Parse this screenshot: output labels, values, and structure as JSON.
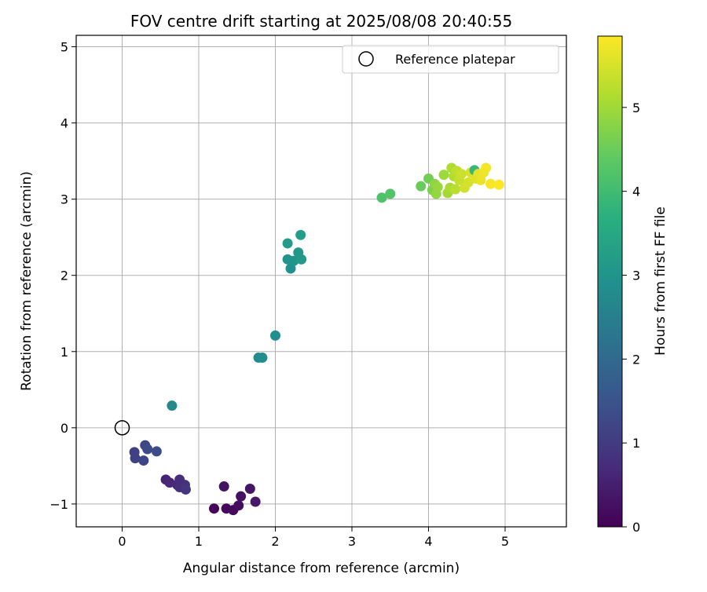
{
  "chart_data": {
    "type": "scatter",
    "title": "FOV centre drift starting at 2025/08/08 20:40:55",
    "xlabel": "Angular distance from reference (arcmin)",
    "ylabel": "Rotation from reference (arcmin)",
    "xlim": [
      -0.6,
      5.8
    ],
    "ylim": [
      -1.3,
      5.15
    ],
    "xticks": [
      0,
      1,
      2,
      3,
      4,
      5
    ],
    "yticks": [
      -1,
      0,
      1,
      2,
      3,
      4,
      5
    ],
    "xtick_labels": [
      "0",
      "1",
      "2",
      "3",
      "4",
      "5"
    ],
    "ytick_labels": [
      "−1",
      "0",
      "1",
      "2",
      "3",
      "4",
      "5"
    ],
    "grid": true,
    "legend": {
      "placement": "top-right",
      "entries": [
        {
          "label": "Reference platepar",
          "marker": "open-circle"
        }
      ]
    },
    "reference_point": {
      "x": 0,
      "y": 0
    },
    "colorbar": {
      "label": "Hours from first FF file",
      "colormap": "viridis",
      "range": [
        0,
        5.85
      ],
      "ticks": [
        0,
        1,
        2,
        3,
        4,
        5
      ],
      "tick_labels": [
        "0",
        "1",
        "2",
        "3",
        "4",
        "5"
      ]
    },
    "points": [
      {
        "x": 1.2,
        "y": -1.06,
        "t": 0.05
      },
      {
        "x": 1.36,
        "y": -1.06,
        "t": 0.1
      },
      {
        "x": 1.45,
        "y": -1.08,
        "t": 0.15
      },
      {
        "x": 1.52,
        "y": -1.02,
        "t": 0.2
      },
      {
        "x": 1.55,
        "y": -0.9,
        "t": 0.25
      },
      {
        "x": 1.33,
        "y": -0.77,
        "t": 0.3
      },
      {
        "x": 1.67,
        "y": -0.8,
        "t": 0.35
      },
      {
        "x": 1.74,
        "y": -0.97,
        "t": 0.4
      },
      {
        "x": 0.57,
        "y": -0.68,
        "t": 0.6
      },
      {
        "x": 0.62,
        "y": -0.72,
        "t": 0.65
      },
      {
        "x": 0.72,
        "y": -0.75,
        "t": 0.7
      },
      {
        "x": 0.75,
        "y": -0.68,
        "t": 0.75
      },
      {
        "x": 0.75,
        "y": -0.78,
        "t": 0.8
      },
      {
        "x": 0.82,
        "y": -0.75,
        "t": 0.85
      },
      {
        "x": 0.83,
        "y": -0.81,
        "t": 0.9
      },
      {
        "x": 0.16,
        "y": -0.32,
        "t": 1.1
      },
      {
        "x": 0.17,
        "y": -0.4,
        "t": 1.15
      },
      {
        "x": 0.28,
        "y": -0.43,
        "t": 1.2
      },
      {
        "x": 0.3,
        "y": -0.23,
        "t": 1.25
      },
      {
        "x": 0.33,
        "y": -0.28,
        "t": 1.3
      },
      {
        "x": 0.45,
        "y": -0.31,
        "t": 1.35
      },
      {
        "x": 0.65,
        "y": 0.29,
        "t": 2.75
      },
      {
        "x": 1.78,
        "y": 0.92,
        "t": 2.8
      },
      {
        "x": 1.83,
        "y": 0.92,
        "t": 2.85
      },
      {
        "x": 2.0,
        "y": 1.21,
        "t": 2.9
      },
      {
        "x": 2.2,
        "y": 2.09,
        "t": 2.95
      },
      {
        "x": 2.16,
        "y": 2.21,
        "t": 3.0
      },
      {
        "x": 2.24,
        "y": 2.19,
        "t": 3.05
      },
      {
        "x": 2.3,
        "y": 2.3,
        "t": 3.1
      },
      {
        "x": 2.34,
        "y": 2.21,
        "t": 3.15
      },
      {
        "x": 2.16,
        "y": 2.42,
        "t": 3.2
      },
      {
        "x": 2.33,
        "y": 2.53,
        "t": 3.25
      },
      {
        "x": 3.39,
        "y": 3.02,
        "t": 4.2
      },
      {
        "x": 3.5,
        "y": 3.07,
        "t": 4.25
      },
      {
        "x": 3.9,
        "y": 3.17,
        "t": 4.5
      },
      {
        "x": 4.0,
        "y": 3.27,
        "t": 4.6
      },
      {
        "x": 4.05,
        "y": 3.12,
        "t": 4.7
      },
      {
        "x": 4.08,
        "y": 3.2,
        "t": 4.85
      },
      {
        "x": 4.1,
        "y": 3.07,
        "t": 4.9
      },
      {
        "x": 4.12,
        "y": 3.16,
        "t": 4.95
      },
      {
        "x": 4.2,
        "y": 3.32,
        "t": 5.0
      },
      {
        "x": 4.25,
        "y": 3.08,
        "t": 5.05
      },
      {
        "x": 4.28,
        "y": 3.15,
        "t": 5.1
      },
      {
        "x": 4.3,
        "y": 3.41,
        "t": 5.15
      },
      {
        "x": 4.33,
        "y": 3.3,
        "t": 5.2
      },
      {
        "x": 4.35,
        "y": 3.13,
        "t": 5.25
      },
      {
        "x": 4.37,
        "y": 3.37,
        "t": 5.3
      },
      {
        "x": 4.4,
        "y": 3.25,
        "t": 5.35
      },
      {
        "x": 4.43,
        "y": 3.33,
        "t": 5.4
      },
      {
        "x": 4.47,
        "y": 3.15,
        "t": 5.45
      },
      {
        "x": 4.52,
        "y": 3.22,
        "t": 5.5
      },
      {
        "x": 4.55,
        "y": 3.35,
        "t": 5.52
      },
      {
        "x": 4.6,
        "y": 3.38,
        "t": 3.9
      },
      {
        "x": 4.62,
        "y": 3.27,
        "t": 5.58
      },
      {
        "x": 4.65,
        "y": 3.33,
        "t": 5.62
      },
      {
        "x": 4.68,
        "y": 3.25,
        "t": 5.68
      },
      {
        "x": 4.72,
        "y": 3.35,
        "t": 5.72
      },
      {
        "x": 4.75,
        "y": 3.41,
        "t": 5.76
      },
      {
        "x": 4.81,
        "y": 3.2,
        "t": 5.8
      },
      {
        "x": 4.92,
        "y": 3.19,
        "t": 5.84
      }
    ]
  }
}
